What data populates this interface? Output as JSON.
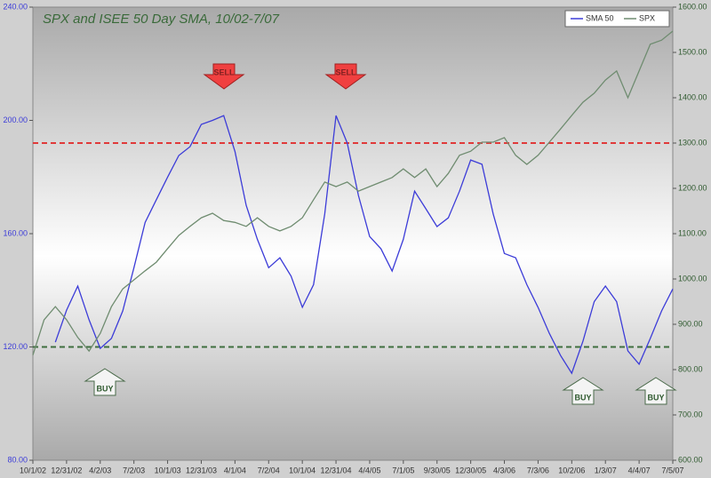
{
  "chart_data": {
    "type": "line",
    "title": "SPX and ISEE 50 Day SMA, 10/02-7/07",
    "categories": [
      "10/1/02",
      null,
      null,
      "12/31/02",
      null,
      null,
      "4/2/03",
      null,
      null,
      "7/2/03",
      null,
      null,
      "10/1/03",
      null,
      null,
      "12/31/03",
      null,
      null,
      "4/1/04",
      null,
      null,
      "7/2/04",
      null,
      null,
      "10/1/04",
      null,
      null,
      "12/31/04",
      null,
      null,
      "4/4/05",
      null,
      null,
      "7/1/05",
      null,
      null,
      "9/30/05",
      null,
      null,
      "12/30/05",
      null,
      null,
      "4/3/06",
      null,
      null,
      "7/3/06",
      null,
      null,
      "10/2/06",
      null,
      null,
      "1/3/07",
      null,
      null,
      "4/4/07",
      null,
      null,
      "7/5/07"
    ],
    "series": [
      {
        "name": "SMA 50",
        "color": "#3c3cd8",
        "axis": "y",
        "values": [
          null,
          null,
          121.7,
          133,
          141.5,
          129.6,
          119.5,
          123,
          132.7,
          148,
          164,
          172,
          180,
          187.6,
          190.7,
          198.6,
          200,
          201.7,
          189,
          170,
          158,
          148,
          151.5,
          145,
          134,
          142,
          167,
          201.7,
          192,
          173.5,
          159,
          154.7,
          146.8,
          158,
          175,
          168.8,
          162.5,
          165.6,
          175,
          186,
          184.5,
          167,
          153,
          151.5,
          142,
          134,
          124.8,
          117,
          110.7,
          122,
          136,
          141.5,
          136,
          118.6,
          113.9,
          123,
          132.7,
          140.5
        ]
      },
      {
        "name": "SPX",
        "color": "#6f8c70",
        "axis": "y2",
        "values": [
          832,
          910,
          939,
          910,
          871,
          841,
          880,
          939,
          978,
          998,
          1018,
          1037,
          1067,
          1096,
          1116,
          1135,
          1145,
          1129,
          1125,
          1116,
          1135,
          1116,
          1106,
          1116,
          1135,
          1175,
          1214,
          1204,
          1214,
          1194,
          1204,
          1214,
          1224,
          1243,
          1224,
          1243,
          1204,
          1233,
          1273,
          1282,
          1302,
          1302,
          1312,
          1273,
          1253,
          1273,
          1302,
          1331,
          1361,
          1390,
          1410,
          1439,
          1459,
          1400,
          1459,
          1518,
          1527,
          1547
        ]
      }
    ],
    "ylim": [
      80,
      240
    ],
    "yticks": [
      {
        "value": 80,
        "label": "80.00"
      },
      {
        "value": 120,
        "label": "120.00"
      },
      {
        "value": 160,
        "label": "160.00"
      },
      {
        "value": 200,
        "label": "200.00"
      },
      {
        "value": 240,
        "label": "240.00"
      }
    ],
    "y2lim": [
      600,
      1600
    ],
    "y2ticks": [
      {
        "value": 600,
        "label": "600.00"
      },
      {
        "value": 700,
        "label": "700.00"
      },
      {
        "value": 800,
        "label": "800.00"
      },
      {
        "value": 900,
        "label": "900.00"
      },
      {
        "value": 1000,
        "label": "1000.00"
      },
      {
        "value": 1100,
        "label": "1100.00"
      },
      {
        "value": 1200,
        "label": "1200.00"
      },
      {
        "value": 1300,
        "label": "1300.00"
      },
      {
        "value": 1400,
        "label": "1400.00"
      },
      {
        "value": 1500,
        "label": "1500.00"
      },
      {
        "value": 1600,
        "label": "1600.00"
      }
    ],
    "hlines": [
      {
        "value": 192,
        "color": "#e03a3a"
      },
      {
        "value": 120,
        "color": "#3f6f3f"
      }
    ],
    "legend": "top-right",
    "annotations": [
      "SELL",
      "SELL",
      "BUY",
      "BUY",
      "BUY"
    ]
  }
}
